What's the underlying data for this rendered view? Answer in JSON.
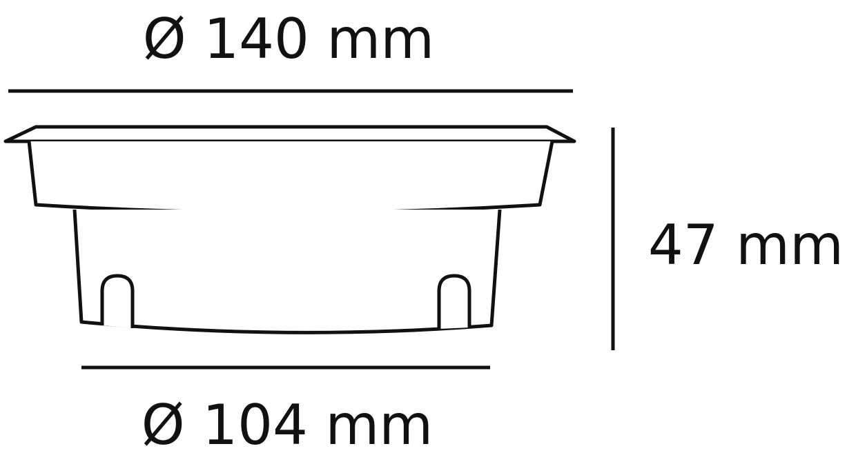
{
  "dimensions": {
    "top_diameter": "Ø 140 mm",
    "height": "47 mm",
    "bottom_diameter": "Ø 104 mm"
  },
  "colors": {
    "stroke": "#111111",
    "background": "#ffffff"
  }
}
